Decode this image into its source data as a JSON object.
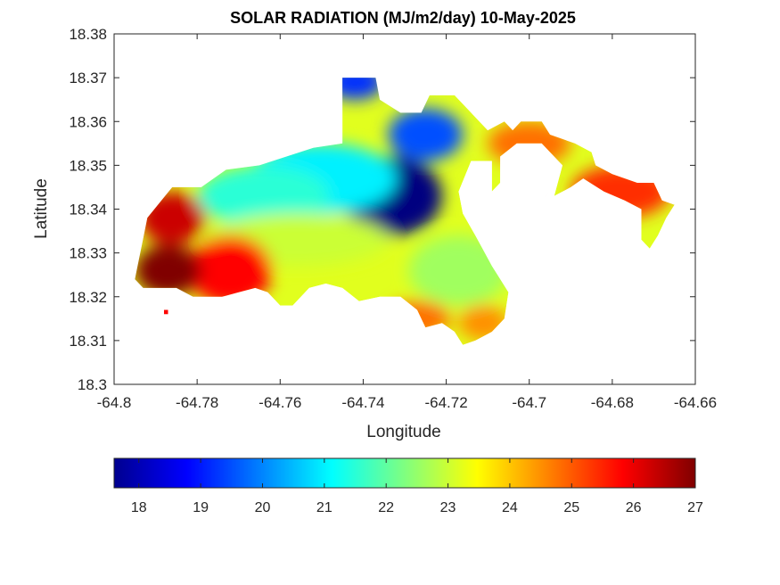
{
  "chart_data": {
    "type": "heatmap",
    "title": "SOLAR RADIATION (MJ/m2/day) 10-May-2025",
    "xlabel": "Longitude",
    "ylabel": "Latitude",
    "xlim": [
      -64.8,
      -64.66
    ],
    "ylim": [
      18.3,
      18.38
    ],
    "x_ticks": [
      -64.8,
      -64.78,
      -64.76,
      -64.74,
      -64.72,
      -64.7,
      -64.68,
      -64.66
    ],
    "x_tick_labels": [
      "-64.8",
      "-64.78",
      "-64.76",
      "-64.74",
      "-64.72",
      "-64.7",
      "-64.68",
      "-64.66"
    ],
    "y_ticks": [
      18.3,
      18.31,
      18.32,
      18.33,
      18.34,
      18.35,
      18.36,
      18.37,
      18.38
    ],
    "y_tick_labels": [
      "18.3",
      "18.31",
      "18.32",
      "18.33",
      "18.34",
      "18.35",
      "18.36",
      "18.37",
      "18.38"
    ],
    "colormap": "jet",
    "colorbar": {
      "placement": "bottom",
      "range": [
        17.6,
        27
      ],
      "ticks": [
        18,
        19,
        20,
        21,
        22,
        23,
        24,
        25,
        26,
        27
      ],
      "tick_labels": [
        "18",
        "19",
        "20",
        "21",
        "22",
        "23",
        "24",
        "25",
        "26",
        "27"
      ]
    },
    "land_outline": [
      [
        -64.795,
        18.324
      ],
      [
        -64.792,
        18.338
      ],
      [
        -64.786,
        18.345
      ],
      [
        -64.779,
        18.345
      ],
      [
        -64.773,
        18.349
      ],
      [
        -64.765,
        18.35
      ],
      [
        -64.752,
        18.354
      ],
      [
        -64.745,
        18.355
      ],
      [
        -64.745,
        18.37
      ],
      [
        -64.737,
        18.37
      ],
      [
        -64.736,
        18.365
      ],
      [
        -64.731,
        18.362
      ],
      [
        -64.726,
        18.362
      ],
      [
        -64.724,
        18.366
      ],
      [
        -64.718,
        18.366
      ],
      [
        -64.714,
        18.362
      ],
      [
        -64.71,
        18.358
      ],
      [
        -64.706,
        18.36
      ],
      [
        -64.704,
        18.358
      ],
      [
        -64.702,
        18.36
      ],
      [
        -64.697,
        18.36
      ],
      [
        -64.695,
        18.357
      ],
      [
        -64.689,
        18.355
      ],
      [
        -64.685,
        18.353
      ],
      [
        -64.684,
        18.35
      ],
      [
        -64.68,
        18.348
      ],
      [
        -64.674,
        18.346
      ],
      [
        -64.67,
        18.346
      ],
      [
        -64.668,
        18.342
      ],
      [
        -64.665,
        18.341
      ],
      [
        -64.667,
        18.338
      ],
      [
        -64.669,
        18.334
      ],
      [
        -64.671,
        18.331
      ],
      [
        -64.673,
        18.333
      ],
      [
        -64.673,
        18.34
      ],
      [
        -64.677,
        18.342
      ],
      [
        -64.682,
        18.344
      ],
      [
        -64.687,
        18.347
      ],
      [
        -64.69,
        18.345
      ],
      [
        -64.694,
        18.343
      ],
      [
        -64.692,
        18.35
      ],
      [
        -64.697,
        18.355
      ],
      [
        -64.703,
        18.355
      ],
      [
        -64.707,
        18.352
      ],
      [
        -64.707,
        18.346
      ],
      [
        -64.709,
        18.344
      ],
      [
        -64.709,
        18.351
      ],
      [
        -64.714,
        18.351
      ],
      [
        -64.717,
        18.344
      ],
      [
        -64.716,
        18.339
      ],
      [
        -64.713,
        18.334
      ],
      [
        -64.709,
        18.327
      ],
      [
        -64.705,
        18.321
      ],
      [
        -64.706,
        18.315
      ],
      [
        -64.709,
        18.312
      ],
      [
        -64.713,
        18.31
      ],
      [
        -64.716,
        18.309
      ],
      [
        -64.718,
        18.312
      ],
      [
        -64.721,
        18.314
      ],
      [
        -64.725,
        18.313
      ],
      [
        -64.727,
        18.317
      ],
      [
        -64.731,
        18.32
      ],
      [
        -64.736,
        18.32
      ],
      [
        -64.741,
        18.319
      ],
      [
        -64.745,
        18.322
      ],
      [
        -64.749,
        18.323
      ],
      [
        -64.753,
        18.322
      ],
      [
        -64.757,
        18.318
      ],
      [
        -64.76,
        18.318
      ],
      [
        -64.763,
        18.321
      ],
      [
        -64.766,
        18.322
      ],
      [
        -64.77,
        18.321
      ],
      [
        -64.774,
        18.32
      ],
      [
        -64.777,
        18.32
      ],
      [
        -64.781,
        18.32
      ],
      [
        -64.785,
        18.322
      ],
      [
        -64.789,
        18.322
      ],
      [
        -64.793,
        18.322
      ]
    ],
    "land_islets": [
      [
        [
          -64.788,
          18.317
        ],
        [
          -64.787,
          18.317
        ],
        [
          -64.787,
          18.316
        ],
        [
          -64.788,
          18.316
        ]
      ],
      [
        [
          -64.697,
          18.342
        ],
        [
          -64.695,
          18.344
        ],
        [
          -64.696,
          18.343
        ]
      ]
    ],
    "field_centers": [
      {
        "lon": -64.733,
        "lat": 18.343,
        "value": 17.6,
        "rx": 0.012,
        "ry": 0.009
      },
      {
        "lon": -64.742,
        "lat": 18.369,
        "value": 19.2,
        "rx": 0.007,
        "ry": 0.004
      },
      {
        "lon": -64.725,
        "lat": 18.357,
        "value": 19.5,
        "rx": 0.009,
        "ry": 0.006
      },
      {
        "lon": -64.75,
        "lat": 18.347,
        "value": 21.0,
        "rx": 0.018,
        "ry": 0.008
      },
      {
        "lon": -64.764,
        "lat": 18.343,
        "value": 21.5,
        "rx": 0.016,
        "ry": 0.007
      },
      {
        "lon": -64.756,
        "lat": 18.333,
        "value": 23.0,
        "rx": 0.022,
        "ry": 0.006
      },
      {
        "lon": -64.717,
        "lat": 18.326,
        "value": 22.6,
        "rx": 0.012,
        "ry": 0.008
      },
      {
        "lon": -64.7,
        "lat": 18.355,
        "value": 24.8,
        "rx": 0.01,
        "ry": 0.005
      },
      {
        "lon": -64.678,
        "lat": 18.344,
        "value": 25.4,
        "rx": 0.012,
        "ry": 0.006
      },
      {
        "lon": -64.772,
        "lat": 18.326,
        "value": 25.8,
        "rx": 0.01,
        "ry": 0.008
      },
      {
        "lon": -64.787,
        "lat": 18.326,
        "value": 27.0,
        "rx": 0.008,
        "ry": 0.006
      },
      {
        "lon": -64.786,
        "lat": 18.338,
        "value": 26.3,
        "rx": 0.008,
        "ry": 0.006
      },
      {
        "lon": -64.727,
        "lat": 18.315,
        "value": 24.8,
        "rx": 0.008,
        "ry": 0.004
      },
      {
        "lon": -64.711,
        "lat": 18.314,
        "value": 24.5,
        "rx": 0.006,
        "ry": 0.004
      }
    ]
  }
}
